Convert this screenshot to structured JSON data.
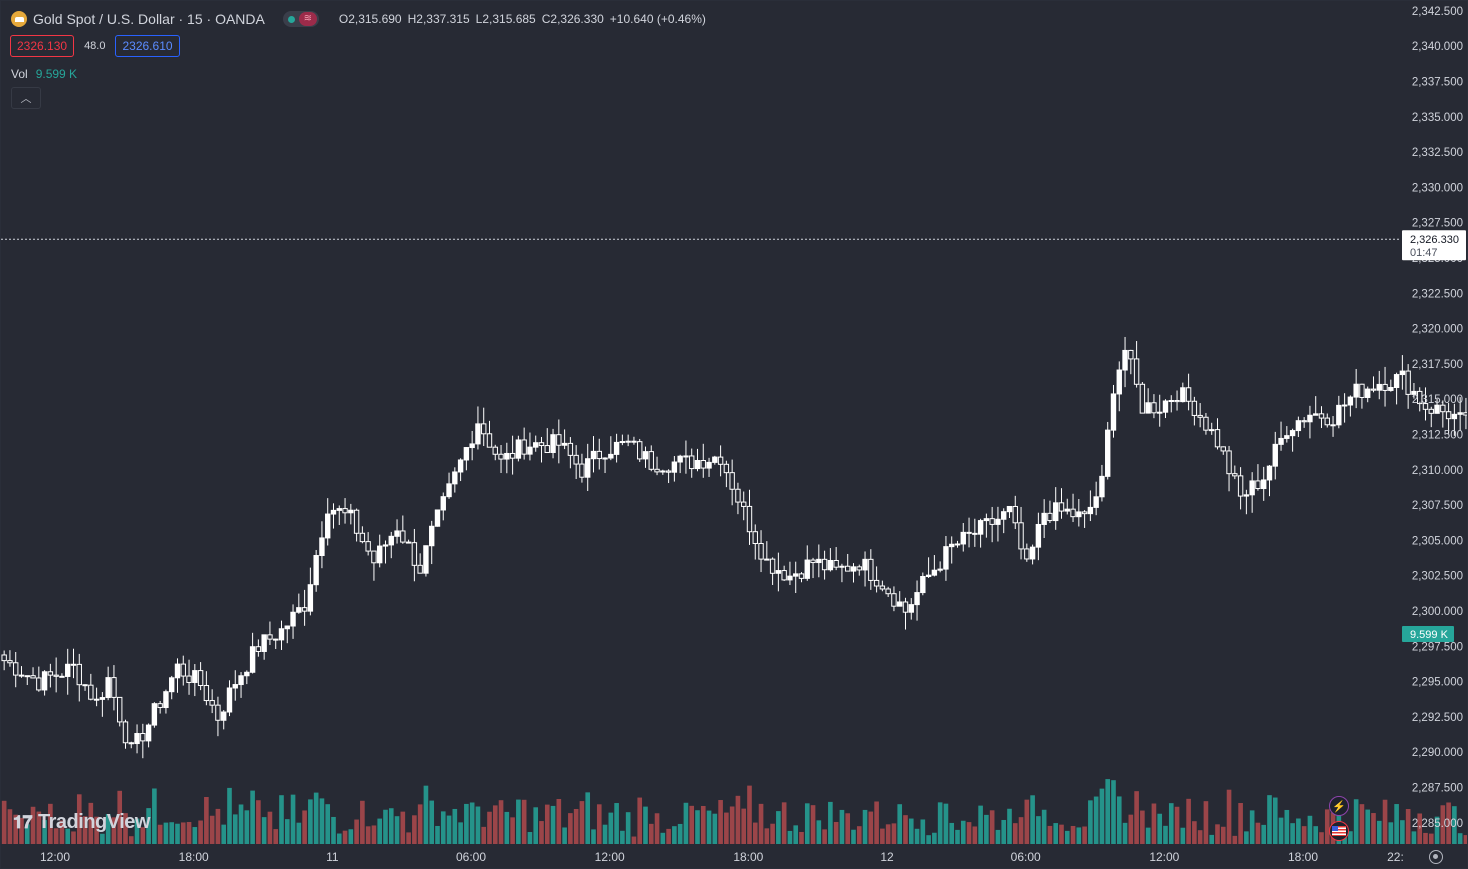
{
  "header": {
    "symbol": "Gold Spot / U.S. Dollar · 15 · OANDA",
    "logo_icon": "gold-bar-icon",
    "ohlc": {
      "o_label": "O",
      "o": "2,315.690",
      "h_label": "H",
      "h": "2,337.315",
      "l_label": "L",
      "l": "2,315.685",
      "c_label": "C",
      "c": "2,326.330",
      "change": "+10.640 (+0.46%)"
    },
    "status_icons": [
      "market-open-dot-icon",
      "data-delay-icon"
    ]
  },
  "trade": {
    "sell": "2326.130",
    "spread": "48.0",
    "buy": "2326.610"
  },
  "volume_legend": {
    "label": "Vol",
    "value": "9.599 K"
  },
  "watermark": "TradingView",
  "colors": {
    "background": "#272a34",
    "up_candle": "#ffffff",
    "down_candle": "#ffffff",
    "vol_up": "#26a69a",
    "vol_down": "#b04a4d",
    "axis_text": "#d1d4dc"
  },
  "chart_data": {
    "type": "candlestick",
    "ylim": [
      2283.5,
      2343.2
    ],
    "y_ticks": [
      "2,342.500",
      "2,340.000",
      "2,337.500",
      "2,335.000",
      "2,332.500",
      "2,330.000",
      "2,327.500",
      "2,325.000",
      "2,322.500",
      "2,320.000",
      "2,317.500",
      "2,315.000",
      "2,312.500",
      "2,310.000",
      "2,307.500",
      "2,305.000",
      "2,302.500",
      "2,300.000",
      "2,297.500",
      "2,295.000",
      "2,292.500",
      "2,290.000",
      "2,287.500",
      "2,285.000"
    ],
    "y_tick_values": [
      2342.5,
      2340,
      2337.5,
      2335,
      2332.5,
      2330,
      2327.5,
      2325,
      2322.5,
      2320,
      2317.5,
      2315,
      2312.5,
      2310,
      2307.5,
      2305,
      2302.5,
      2300,
      2297.5,
      2295,
      2292.5,
      2290,
      2287.5,
      2285
    ],
    "x_ticks": [
      "12:00",
      "18:00",
      "11",
      "06:00",
      "12:00",
      "18:00",
      "12",
      "06:00",
      "12:00",
      "18:00",
      "22:"
    ],
    "x_tick_hours": [
      12,
      18,
      24,
      30,
      36,
      42,
      48,
      54,
      60,
      66,
      70
    ],
    "bar_interval_hours": 0.25,
    "start_hour": 9.8,
    "current_price": "2,326.330",
    "current_price_value": 2326.33,
    "countdown": "01:47",
    "current_volume": "9.599 K",
    "volume_max_k": 9.6,
    "anchors_close": [
      [
        0,
        2296.5
      ],
      [
        6,
        2295.0
      ],
      [
        12,
        2296.0
      ],
      [
        16,
        2293.5
      ],
      [
        18,
        2295.2
      ],
      [
        22,
        2290.0
      ],
      [
        25,
        2292.0
      ],
      [
        30,
        2296.0
      ],
      [
        34,
        2294.8
      ],
      [
        37,
        2292.5
      ],
      [
        40,
        2295.0
      ],
      [
        44,
        2297.5
      ],
      [
        48,
        2298.6
      ],
      [
        52,
        2300.5
      ],
      [
        56,
        2307.5
      ],
      [
        60,
        2306.5
      ],
      [
        64,
        2303.5
      ],
      [
        68,
        2306.0
      ],
      [
        72,
        2303.0
      ],
      [
        74,
        2305.5
      ],
      [
        78,
        2309.5
      ],
      [
        82,
        2313.5
      ],
      [
        86,
        2310.5
      ],
      [
        90,
        2311.8
      ],
      [
        96,
        2311.8
      ],
      [
        100,
        2310.0
      ],
      [
        104,
        2311.5
      ],
      [
        108,
        2311.8
      ],
      [
        112,
        2310.5
      ],
      [
        118,
        2310.5
      ],
      [
        124,
        2311.0
      ],
      [
        128,
        2307.0
      ],
      [
        132,
        2303.5
      ],
      [
        136,
        2302.5
      ],
      [
        140,
        2303.5
      ],
      [
        144,
        2302.8
      ],
      [
        148,
        2303.5
      ],
      [
        152,
        2302.0
      ],
      [
        156,
        2300.0
      ],
      [
        160,
        2302.5
      ],
      [
        164,
        2304.5
      ],
      [
        168,
        2305.5
      ],
      [
        170,
        2306.0
      ],
      [
        174,
        2307.0
      ],
      [
        177,
        2303.0
      ],
      [
        180,
        2307.0
      ],
      [
        184,
        2307.0
      ],
      [
        187,
        2306.5
      ],
      [
        190,
        2309.0
      ],
      [
        192,
        2316.0
      ],
      [
        194,
        2318.5
      ],
      [
        197,
        2314.5
      ],
      [
        200,
        2314.5
      ],
      [
        203,
        2315.5
      ],
      [
        206,
        2314.5
      ],
      [
        210,
        2312.0
      ],
      [
        214,
        2308.0
      ],
      [
        218,
        2309.5
      ],
      [
        222,
        2313.0
      ],
      [
        226,
        2314.0
      ],
      [
        230,
        2313.8
      ],
      [
        234,
        2315.5
      ],
      [
        238,
        2316.2
      ],
      [
        242,
        2316.5
      ],
      [
        246,
        2314.5
      ],
      [
        250,
        2314.0
      ],
      [
        254,
        2313.0
      ],
      [
        258,
        2313.0
      ],
      [
        262,
        2314.5
      ],
      [
        266,
        2313.0
      ],
      [
        270,
        2312.5
      ],
      [
        274,
        2314.0
      ],
      [
        278,
        2315.5
      ],
      [
        282,
        2313.5
      ],
      [
        286,
        2313.0
      ],
      [
        290,
        2312.0
      ],
      [
        294,
        2313.5
      ],
      [
        298,
        2314.5
      ],
      [
        302,
        2314.0
      ],
      [
        305,
        2312.8
      ],
      [
        308,
        2313.5
      ],
      [
        310,
        2312.8
      ],
      [
        312,
        2313.4
      ],
      [
        314,
        2314.0
      ],
      [
        316,
        2315.8
      ]
    ],
    "last_bar": {
      "open": 2315.69,
      "high": 2337.315,
      "low": 2315.685,
      "close": 2326.33
    }
  }
}
